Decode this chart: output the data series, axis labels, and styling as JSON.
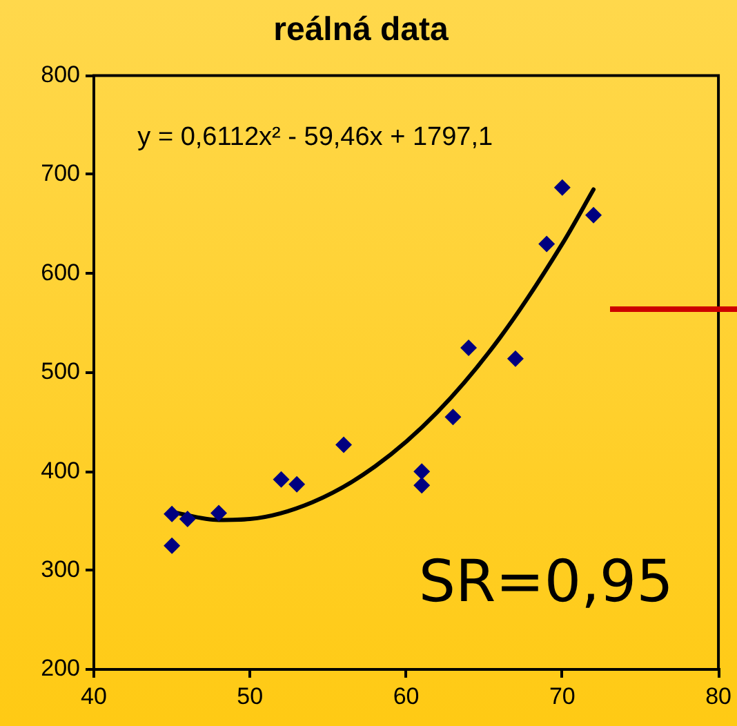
{
  "chart_data": {
    "type": "scatter",
    "title": "reálná data",
    "xlim": [
      40,
      80
    ],
    "xticks": [
      40,
      50,
      60,
      70,
      80
    ],
    "ylim": [
      200,
      800
    ],
    "yticks": [
      200,
      300,
      400,
      500,
      600,
      700,
      800
    ],
    "grid": false,
    "legend": false,
    "marker": "diamond",
    "series": [
      {
        "type": "scatter",
        "color": "#000080",
        "x": [
          45,
          45,
          46,
          48,
          52,
          53,
          56,
          61,
          61,
          63,
          64,
          67,
          69,
          70,
          72
        ],
        "values": [
          357,
          325,
          352,
          358,
          392,
          387,
          427,
          400,
          386,
          455,
          525,
          514,
          630,
          687,
          659
        ]
      },
      {
        "type": "line",
        "color": "#000000",
        "marker": "none",
        "line_style": "solid",
        "x": [
          45,
          48,
          50,
          54,
          58,
          62,
          66,
          70,
          72
        ],
        "values": [
          359,
          351,
          352,
          369,
          405,
          460,
          535,
          630,
          685
        ]
      }
    ],
    "annotations": [
      "y = 0,6112x² - 59,46x + 1797,1",
      "SR=0,95"
    ]
  }
}
